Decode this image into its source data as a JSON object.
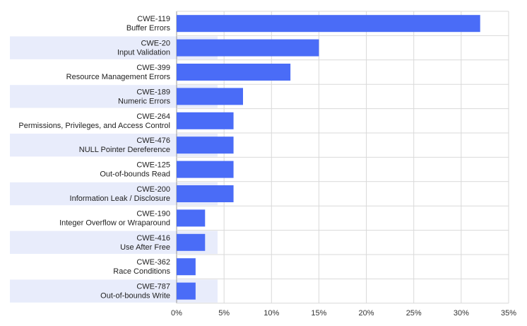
{
  "chart_data": {
    "type": "bar",
    "orientation": "horizontal",
    "categories": [
      [
        "CWE-119",
        "Buffer Errors"
      ],
      [
        "CWE-20",
        "Input Validation"
      ],
      [
        "CWE-399",
        "Resource Management Errors"
      ],
      [
        "CWE-189",
        "Numeric Errors"
      ],
      [
        "CWE-264",
        "Permissions, Privileges, and Access Control"
      ],
      [
        "CWE-476",
        "NULL Pointer Dereference"
      ],
      [
        "CWE-125",
        "Out-of-bounds Read"
      ],
      [
        "CWE-200",
        "Information Leak / Disclosure"
      ],
      [
        "CWE-190",
        "Integer Overflow or Wraparound"
      ],
      [
        "CWE-416",
        "Use After Free"
      ],
      [
        "CWE-362",
        "Race Conditions"
      ],
      [
        "CWE-787",
        "Out-of-bounds Write"
      ]
    ],
    "values": [
      32,
      15,
      12,
      7,
      6,
      6,
      6,
      6,
      3,
      3,
      2,
      2
    ],
    "xlim": [
      0,
      35
    ],
    "xticks": [
      "0%",
      "5%",
      "10%",
      "15%",
      "20%",
      "25%",
      "30%",
      "35%"
    ],
    "title": "",
    "xlabel": "",
    "ylabel": "",
    "grid": true,
    "legend": "none",
    "colors": {
      "bar": "#4a6cf7",
      "row_stripe": "#e8ecfb",
      "grid": "#d9d9d9",
      "axis": "#999999"
    }
  }
}
